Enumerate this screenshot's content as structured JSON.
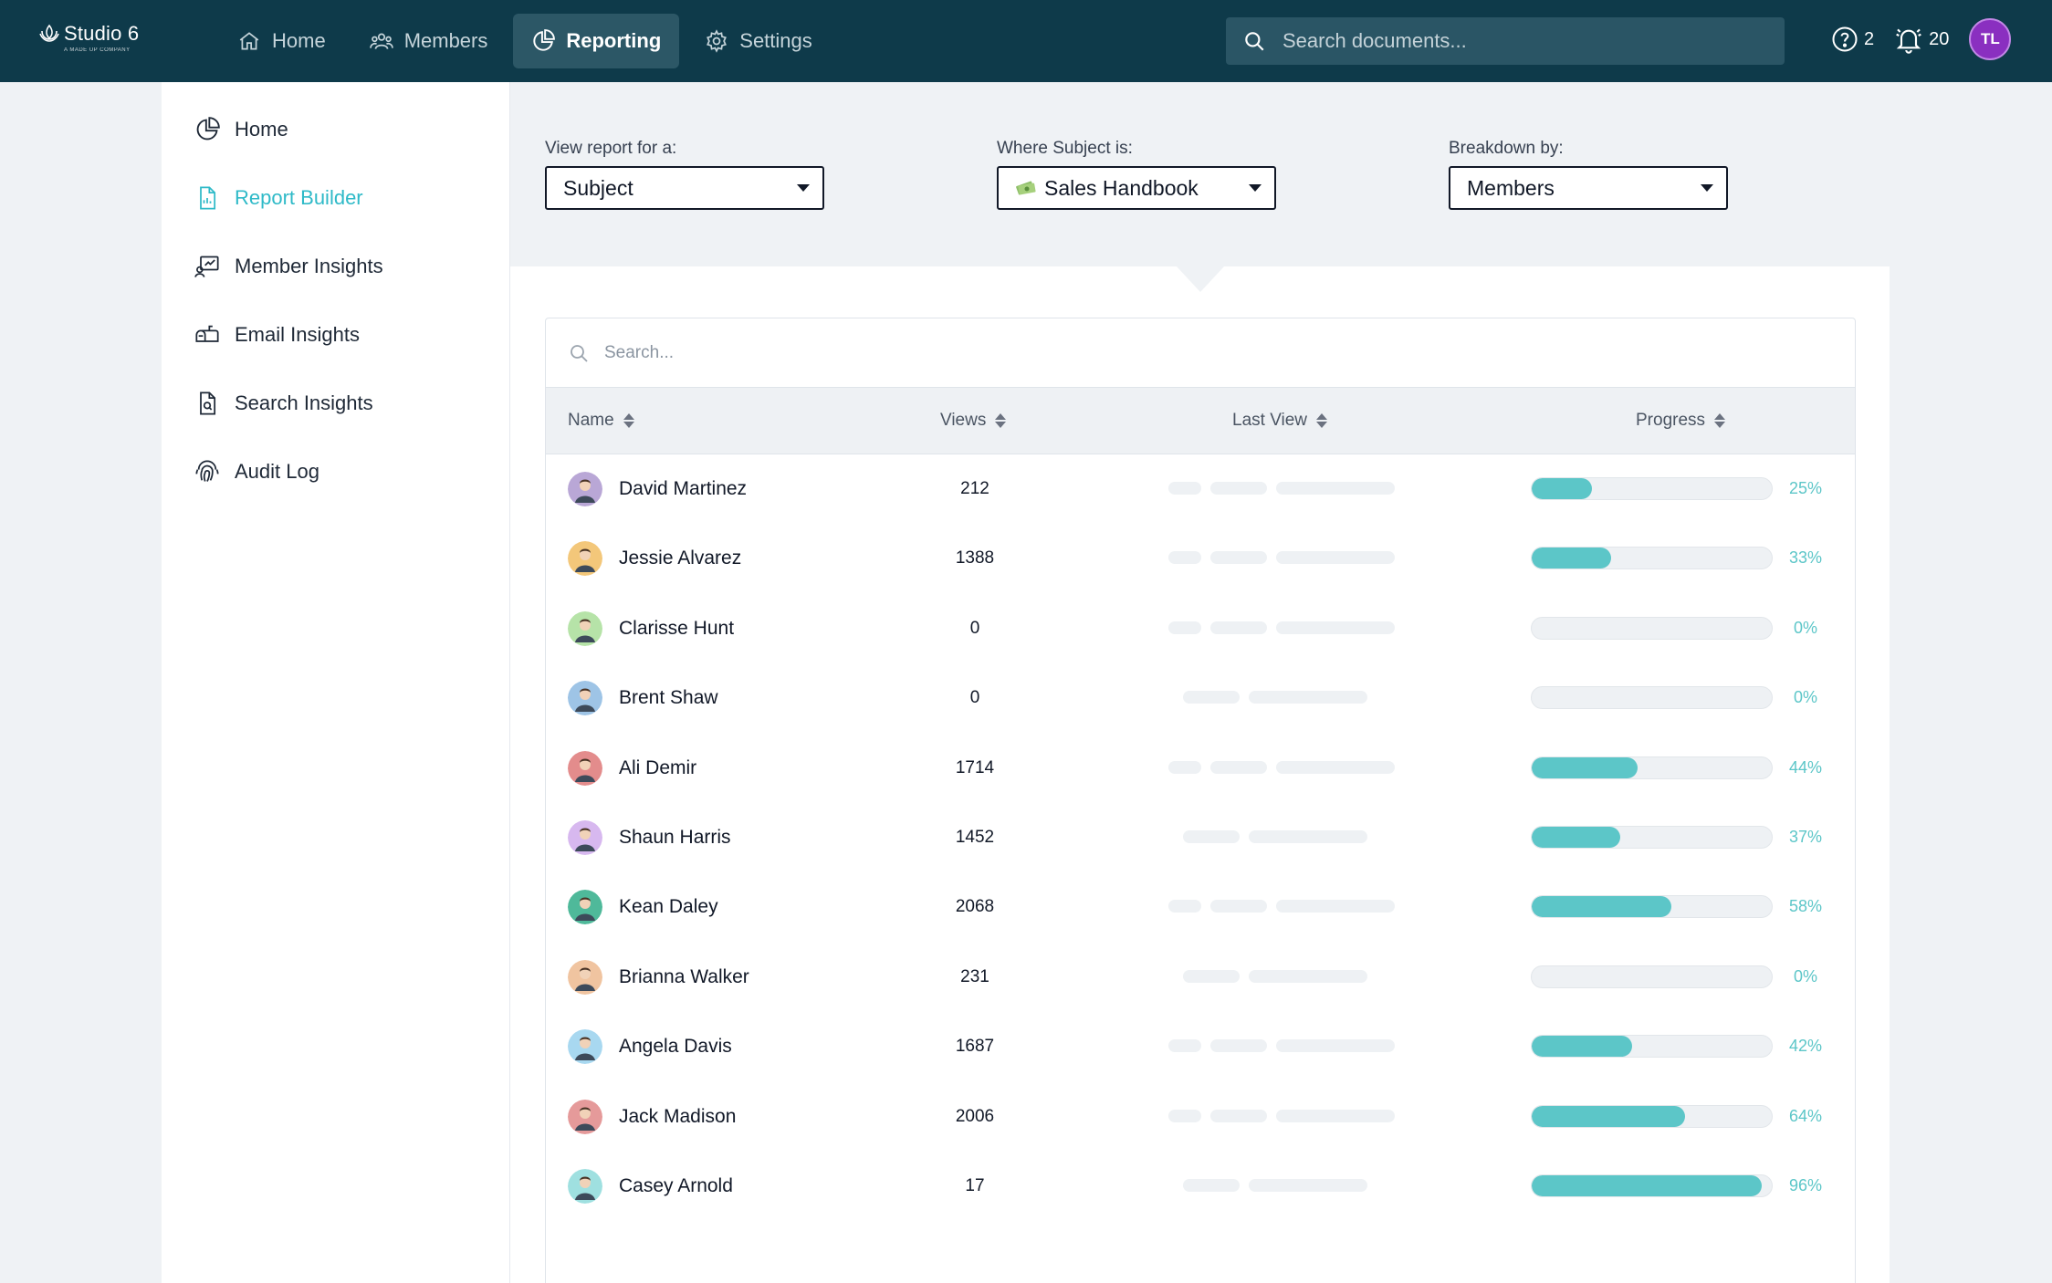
{
  "app": {
    "logo_name": "Studio 6",
    "logo_tagline": "A MADE UP COMPANY"
  },
  "nav": {
    "items": [
      {
        "label": "Home",
        "icon": "home-icon"
      },
      {
        "label": "Members",
        "icon": "members-icon"
      },
      {
        "label": "Reporting",
        "icon": "reporting-icon",
        "active": true
      },
      {
        "label": "Settings",
        "icon": "gear-icon"
      }
    ],
    "search_placeholder": "Search documents...",
    "help_count": "2",
    "notification_count": "20",
    "user_initials": "TL"
  },
  "sidebar": {
    "items": [
      {
        "label": "Home",
        "icon": "chart-icon"
      },
      {
        "label": "Report Builder",
        "icon": "document-icon",
        "active": true
      },
      {
        "label": "Member Insights",
        "icon": "member-insights-icon"
      },
      {
        "label": "Email Insights",
        "icon": "mailbox-icon"
      },
      {
        "label": "Search Insights",
        "icon": "search-document-icon"
      },
      {
        "label": "Audit Log",
        "icon": "fingerprint-icon"
      }
    ]
  },
  "filters": {
    "report_for": {
      "label": "View report for a:",
      "value": "Subject"
    },
    "subject": {
      "label": "Where Subject is:",
      "value": "Sales Handbook",
      "icon": "money-icon"
    },
    "breakdown": {
      "label": "Breakdown by:",
      "value": "Members"
    }
  },
  "table": {
    "search_placeholder": "Search...",
    "columns": {
      "name": "Name",
      "views": "Views",
      "last_view": "Last View",
      "progress": "Progress"
    },
    "rows": [
      {
        "name": "David Martinez",
        "views": "212",
        "progress": 25,
        "progress_label": "25%",
        "avatar_color": "#b9a7d6"
      },
      {
        "name": "Jessie Alvarez",
        "views": "1388",
        "progress": 33,
        "progress_label": "33%",
        "avatar_color": "#f3c77a"
      },
      {
        "name": "Clarisse Hunt",
        "views": "0",
        "progress": 0,
        "progress_label": "0%",
        "avatar_color": "#b6e3a8"
      },
      {
        "name": "Brent Shaw",
        "views": "0",
        "progress": 0,
        "progress_label": "0%",
        "avatar_color": "#9ec4e6"
      },
      {
        "name": "Ali Demir",
        "views": "1714",
        "progress": 44,
        "progress_label": "44%",
        "avatar_color": "#e38c8c"
      },
      {
        "name": "Shaun Harris",
        "views": "1452",
        "progress": 37,
        "progress_label": "37%",
        "avatar_color": "#d7b8ef"
      },
      {
        "name": "Kean Daley",
        "views": "2068",
        "progress": 58,
        "progress_label": "58%",
        "avatar_color": "#4fb99a"
      },
      {
        "name": "Brianna Walker",
        "views": "231",
        "progress": 0,
        "progress_label": "0%",
        "avatar_color": "#f0c4a0"
      },
      {
        "name": "Angela Davis",
        "views": "1687",
        "progress": 42,
        "progress_label": "42%",
        "avatar_color": "#a8d8f0"
      },
      {
        "name": "Jack Madison",
        "views": "2006",
        "progress": 64,
        "progress_label": "64%",
        "avatar_color": "#e59a9a"
      },
      {
        "name": "Casey Arnold",
        "views": "17",
        "progress": 96,
        "progress_label": "96%",
        "avatar_color": "#9fe0e0"
      }
    ]
  },
  "colors": {
    "topbar": "#0e3a4a",
    "accent": "#2fbac8",
    "progress_fill": "#5cc6c8",
    "avatar_user": "#8a2fc0"
  }
}
